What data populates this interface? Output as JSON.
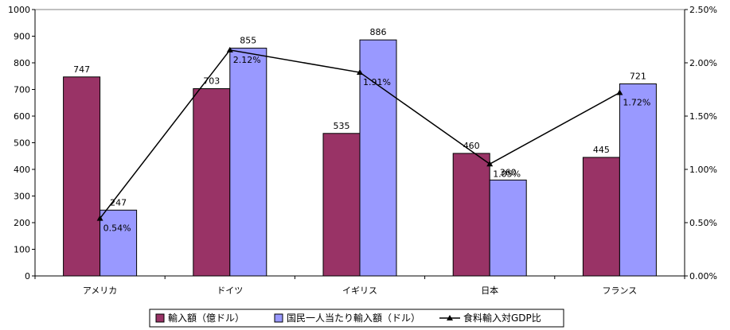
{
  "chart_data": {
    "type": "bar",
    "categories": [
      "アメリカ",
      "ドイツ",
      "イギリス",
      "日本",
      "フランス"
    ],
    "series": [
      {
        "name": "輸入額（億ドル）",
        "kind": "bar",
        "axis": "left",
        "color": "#993366",
        "values": [
          747,
          703,
          535,
          460,
          445
        ]
      },
      {
        "name": "国民一人当たり輸入額（ドル）",
        "kind": "bar",
        "axis": "left",
        "color": "#9999ff",
        "values": [
          247,
          855,
          886,
          360,
          721
        ]
      },
      {
        "name": "食料輸入対GDP比",
        "kind": "line",
        "axis": "right",
        "color": "#000000",
        "marker": "triangle",
        "values": [
          0.54,
          2.12,
          1.91,
          1.05,
          1.72
        ]
      }
    ],
    "left_axis": {
      "min": 0,
      "max": 1000,
      "step": 100,
      "ticks": [
        "0",
        "100",
        "200",
        "300",
        "400",
        "500",
        "600",
        "700",
        "800",
        "900",
        "1000"
      ]
    },
    "right_axis": {
      "min": 0,
      "max": 2.5,
      "step": 0.5,
      "ticks": [
        "0.00%",
        "0.50%",
        "1.00%",
        "1.50%",
        "2.00%",
        "2.50%"
      ]
    },
    "bar_labels": [
      [
        "747",
        "703",
        "535",
        "460",
        "445"
      ],
      [
        "247",
        "855",
        "886",
        "360",
        "721"
      ]
    ],
    "line_labels": [
      "0.54%",
      "2.12%",
      "1.91%",
      "1.05%",
      "1.72%"
    ],
    "grid": false,
    "legend_position": "bottom"
  }
}
